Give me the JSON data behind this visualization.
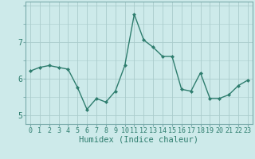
{
  "x": [
    0,
    1,
    2,
    3,
    4,
    5,
    6,
    7,
    8,
    9,
    10,
    11,
    12,
    13,
    14,
    15,
    16,
    17,
    18,
    19,
    20,
    21,
    22,
    23
  ],
  "y": [
    6.2,
    6.3,
    6.35,
    6.3,
    6.25,
    5.75,
    5.15,
    5.45,
    5.35,
    5.65,
    6.35,
    7.75,
    7.05,
    6.85,
    6.6,
    6.6,
    5.7,
    5.65,
    6.15,
    5.45,
    5.45,
    5.55,
    5.8,
    5.95
  ],
  "line_color": "#2e7d6e",
  "marker": "D",
  "marker_size": 2.0,
  "bg_color": "#cdeaea",
  "grid_color": "#aacccc",
  "xlabel": "Humidex (Indice chaleur)",
  "xlim": [
    -0.5,
    23.5
  ],
  "ylim": [
    4.75,
    8.1
  ],
  "yticks": [
    5,
    6,
    7
  ],
  "xtick_labels": [
    "0",
    "1",
    "2",
    "3",
    "4",
    "5",
    "6",
    "7",
    "8",
    "9",
    "10",
    "11",
    "12",
    "13",
    "14",
    "15",
    "16",
    "17",
    "18",
    "19",
    "20",
    "21",
    "22",
    "23"
  ],
  "xlabel_fontsize": 7.5,
  "tick_fontsize": 6.0,
  "line_width": 1.0,
  "label_color": "#2e7d6e"
}
